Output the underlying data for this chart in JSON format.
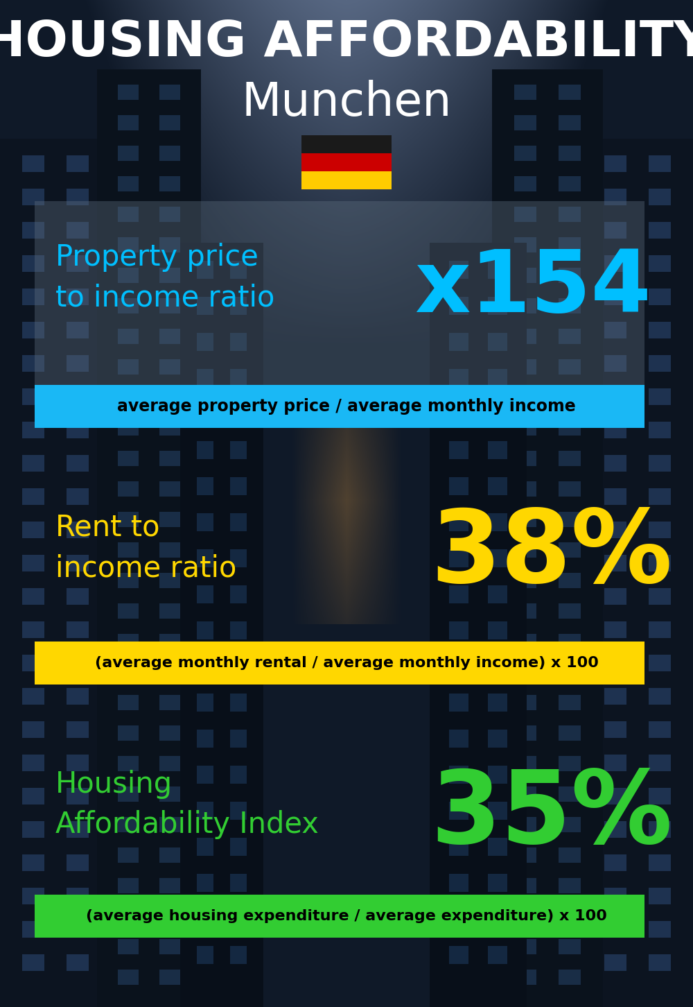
{
  "title_line1": "HOUSING AFFORDABILITY",
  "title_line2": "Munchen",
  "bg_color": "#0d1520",
  "title1_color": "#ffffff",
  "title2_color": "#ffffff",
  "section1_label": "Property price\nto income ratio",
  "section1_value": "x154",
  "section1_label_color": "#00bfff",
  "section1_value_color": "#00bfff",
  "section1_bar_text": "average property price / average monthly income",
  "section1_bar_bg": "#1ab8f5",
  "section1_bar_text_color": "#000000",
  "section2_label": "Rent to\nincome ratio",
  "section2_value": "38%",
  "section2_label_color": "#ffd700",
  "section2_value_color": "#ffd700",
  "section2_bar_text": "(average monthly rental / average monthly income) x 100",
  "section2_bar_bg": "#ffd700",
  "section2_bar_text_color": "#000000",
  "section3_label": "Housing\nAffordability Index",
  "section3_value": "35%",
  "section3_label_color": "#32cd32",
  "section3_value_color": "#32cd32",
  "section3_bar_text": "(average housing expenditure / average expenditure) x 100",
  "section3_bar_bg": "#32cd32",
  "section3_bar_text_color": "#000000",
  "flag_black": "#1a1a1a",
  "flag_red": "#cc0000",
  "flag_gold": "#ffcc00",
  "overlay1_color": "#607080",
  "overlay1_alpha": 0.38,
  "figw": 10.0,
  "figh": 14.52
}
